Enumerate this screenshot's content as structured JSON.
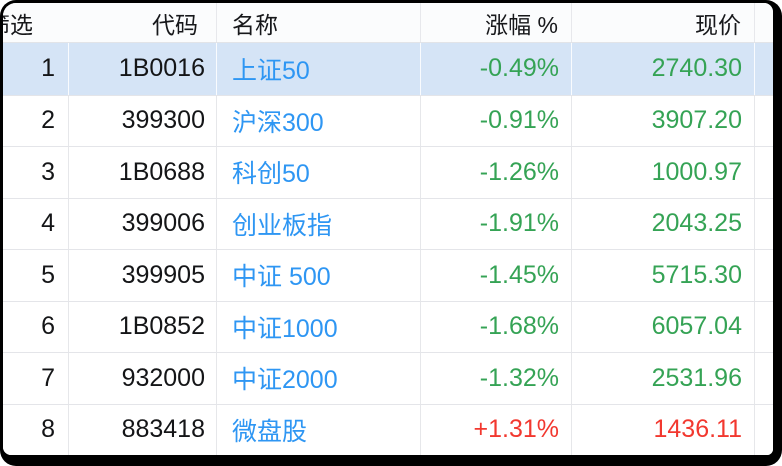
{
  "table": {
    "header": {
      "filter_label": "筛选",
      "code_label": "代码",
      "name_label": "名称",
      "change_label": "涨幅 %",
      "price_label": "现价"
    },
    "rows": [
      {
        "num": "1",
        "code": "1B0016",
        "name": "上证50",
        "change": "-0.49%",
        "price": "2740.30",
        "trend": "down",
        "selected": true
      },
      {
        "num": "2",
        "code": "399300",
        "name": "沪深300",
        "change": "-0.91%",
        "price": "3907.20",
        "trend": "down",
        "selected": false
      },
      {
        "num": "3",
        "code": "1B0688",
        "name": "科创50",
        "change": "-1.26%",
        "price": "1000.97",
        "trend": "down",
        "selected": false
      },
      {
        "num": "4",
        "code": "399006",
        "name": "创业板指",
        "change": "-1.91%",
        "price": "2043.25",
        "trend": "down",
        "selected": false
      },
      {
        "num": "5",
        "code": "399905",
        "name": "中证 500",
        "change": "-1.45%",
        "price": "5715.30",
        "trend": "down",
        "selected": false
      },
      {
        "num": "6",
        "code": "1B0852",
        "name": "中证1000",
        "change": "-1.68%",
        "price": "6057.04",
        "trend": "down",
        "selected": false
      },
      {
        "num": "7",
        "code": "932000",
        "name": "中证2000",
        "change": "-1.32%",
        "price": "2531.96",
        "trend": "down",
        "selected": false
      },
      {
        "num": "8",
        "code": "883418",
        "name": "微盘股",
        "change": "+1.31%",
        "price": "1436.11",
        "trend": "up",
        "selected": false
      }
    ],
    "colors": {
      "up": "#f2382f",
      "down": "#35a355",
      "name_link": "#2e96f3",
      "selected_row_bg": "#d5e4f6",
      "frame": "#000000"
    }
  }
}
